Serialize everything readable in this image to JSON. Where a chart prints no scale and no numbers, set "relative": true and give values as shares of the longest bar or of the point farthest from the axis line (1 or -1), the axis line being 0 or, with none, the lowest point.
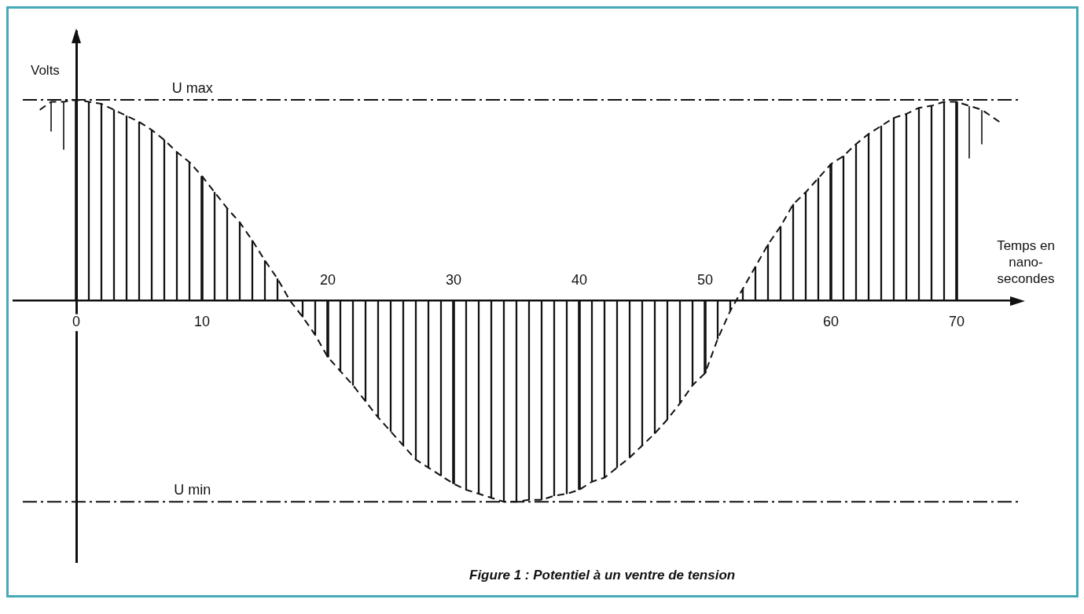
{
  "chart_data": {
    "type": "bar",
    "relative": true,
    "xlabel": "Temps en nano-secondes",
    "ylabel": "Volts",
    "annotations": [
      "Figure 1 : Potentiel à un ventre de tension"
    ],
    "xlim": [
      -5,
      75
    ],
    "xticks": [
      0,
      10,
      60,
      70
    ],
    "x2lim": [
      -5,
      75
    ],
    "x2ticks": [
      20,
      30,
      40,
      50
    ],
    "series": [
      {
        "color": "#111111",
        "x": [
          0,
          1,
          2,
          3,
          4,
          5,
          6,
          7,
          8,
          9,
          10,
          11,
          12,
          13,
          14,
          15,
          16,
          18,
          19,
          20,
          21,
          22,
          23,
          24,
          25,
          26,
          27,
          28,
          29,
          30,
          31,
          32,
          33,
          34,
          35,
          36,
          37,
          38,
          39,
          40,
          41,
          42,
          43,
          44,
          45,
          46,
          47,
          48,
          49,
          50,
          51,
          52,
          53,
          54,
          55,
          56,
          57,
          58,
          59,
          60,
          61,
          62,
          63,
          64,
          65,
          66,
          67,
          68,
          69,
          70
        ],
        "values": [
          1.0,
          0.99,
          0.98,
          0.95,
          0.92,
          0.89,
          0.85,
          0.8,
          0.74,
          0.69,
          0.62,
          0.54,
          0.46,
          0.39,
          0.3,
          0.2,
          0.11,
          -0.08,
          -0.17,
          -0.28,
          -0.35,
          -0.42,
          -0.5,
          -0.58,
          -0.65,
          -0.72,
          -0.79,
          -0.83,
          -0.87,
          -0.91,
          -0.94,
          -0.96,
          -0.98,
          -1.0,
          -1.0,
          -0.99,
          -0.99,
          -0.97,
          -0.96,
          -0.94,
          -0.9,
          -0.88,
          -0.83,
          -0.78,
          -0.72,
          -0.66,
          -0.59,
          -0.51,
          -0.42,
          -0.36,
          -0.19,
          -0.05,
          0.06,
          0.17,
          0.28,
          0.37,
          0.48,
          0.54,
          0.61,
          0.68,
          0.72,
          0.78,
          0.83,
          0.87,
          0.91,
          0.93,
          0.96,
          0.97,
          0.99,
          0.99
        ]
      },
      {
        "type": "line",
        "color": "#111111",
        "line_style": "dashed",
        "x": [
          -2.9,
          -2,
          -1,
          0,
          1,
          2,
          3,
          4,
          5,
          6,
          7,
          8,
          9,
          10,
          11,
          12,
          13,
          14,
          15,
          16,
          17,
          18,
          19,
          20,
          21,
          22,
          23,
          24,
          25,
          26,
          27,
          28,
          29,
          30,
          31,
          32,
          33,
          34,
          35,
          36,
          37,
          38,
          39,
          40,
          41,
          42,
          43,
          44,
          45,
          46,
          47,
          48,
          49,
          50,
          51,
          52,
          53,
          54,
          55,
          56,
          57,
          58,
          59,
          60,
          61,
          62,
          63,
          64,
          65,
          66,
          67,
          68,
          69,
          70,
          71,
          72,
          73.4
        ],
        "values": [
          0.95,
          0.99,
          0.99,
          1.0,
          0.99,
          0.98,
          0.95,
          0.92,
          0.89,
          0.85,
          0.8,
          0.74,
          0.69,
          0.62,
          0.54,
          0.46,
          0.39,
          0.3,
          0.2,
          0.11,
          0.0,
          -0.08,
          -0.17,
          -0.28,
          -0.35,
          -0.42,
          -0.5,
          -0.58,
          -0.65,
          -0.72,
          -0.79,
          -0.83,
          -0.87,
          -0.91,
          -0.94,
          -0.96,
          -0.98,
          -1.0,
          -1.0,
          -0.99,
          -0.99,
          -0.97,
          -0.96,
          -0.94,
          -0.9,
          -0.88,
          -0.83,
          -0.78,
          -0.72,
          -0.66,
          -0.59,
          -0.51,
          -0.42,
          -0.36,
          -0.19,
          -0.05,
          0.06,
          0.17,
          0.28,
          0.37,
          0.48,
          0.54,
          0.61,
          0.68,
          0.72,
          0.78,
          0.83,
          0.87,
          0.91,
          0.93,
          0.96,
          0.97,
          0.99,
          0.99,
          0.97,
          0.95,
          0.89
        ]
      }
    ],
    "ref_lines": [
      {
        "axis": "y",
        "value": 1,
        "label": "U max",
        "color": "#111111",
        "line_style": "dashed"
      },
      {
        "axis": "y",
        "value": -1,
        "label": "U min",
        "color": "#111111",
        "line_style": "dashed"
      }
    ]
  }
}
